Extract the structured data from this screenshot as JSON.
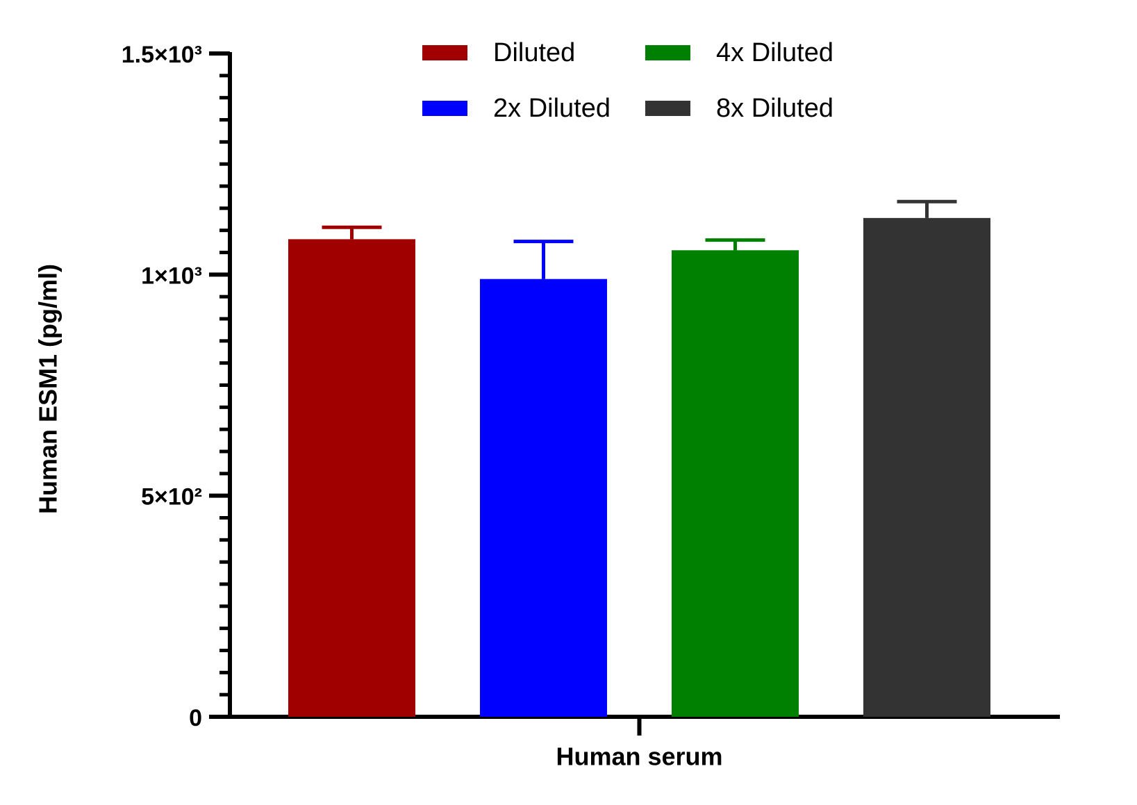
{
  "chart_data": {
    "type": "bar",
    "categories": [
      "Human serum"
    ],
    "x_label": "Human serum",
    "y_label": "Human ESM1 (pg/ml)",
    "series": [
      {
        "name": "Diluted",
        "color": "#a00000",
        "values": [
          1080
        ],
        "errors": [
          27
        ]
      },
      {
        "name": "2x Diluted",
        "color": "#0000ff",
        "values": [
          990
        ],
        "errors": [
          85
        ]
      },
      {
        "name": "4x Diluted",
        "color": "#008000",
        "values": [
          1055
        ],
        "errors": [
          23
        ]
      },
      {
        "name": "8x Diluted",
        "color": "#333333",
        "values": [
          1128
        ],
        "errors": [
          37
        ]
      }
    ],
    "ylim": [
      0,
      1500
    ],
    "yticks": [
      0,
      {
        "value": 500,
        "label": "5×10²"
      },
      {
        "value": 1000,
        "label": "1×10³"
      },
      {
        "value": 1500,
        "label": "1.5×10³"
      }
    ],
    "yminorticks": [
      50,
      100,
      150,
      200,
      250,
      300,
      350,
      400,
      450,
      550,
      600,
      650,
      700,
      750,
      800,
      850,
      900,
      950,
      1050,
      1100,
      1150,
      1200,
      1250,
      1300,
      1350,
      1400,
      1450
    ],
    "grid": false,
    "legend": "top"
  }
}
